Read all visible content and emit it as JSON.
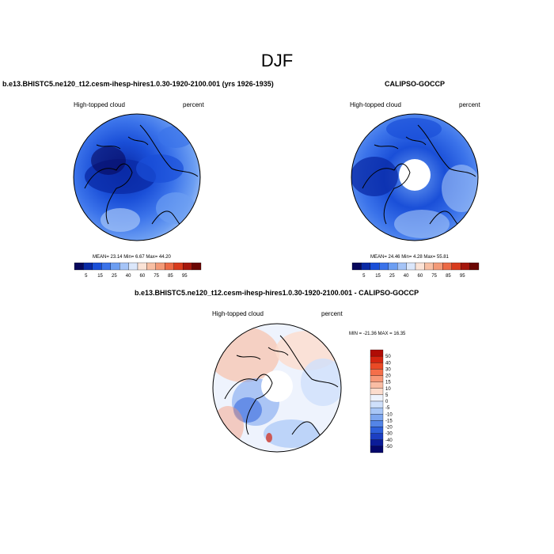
{
  "page_title": "DJF",
  "panels": [
    {
      "title": "b.e13.BHISTC5.ne120_t12.cesm-ihesp-hires1.0.30-1920-2100.001 (yrs 1926-1935)",
      "left_label": "High-topped cloud",
      "right_label": "percent",
      "stats": "MEAN=  23.14  Min=   6.67  Max=  44.20"
    },
    {
      "title": "CALIPSO-GOCCP",
      "left_label": "High-topped cloud",
      "right_label": "percent",
      "stats": "MEAN=  24.46  Min=   4.28  Max=  55.81"
    },
    {
      "title": "b.e13.BHISTC5.ne120_t12.cesm-ihesp-hires1.0.30-1920-2100.001 - CALIPSO-GOCCP",
      "left_label": "High-topped cloud",
      "right_label": "percent",
      "stats": "MIN = -21.36 MAX =  16.35"
    }
  ],
  "colorbar_main": {
    "colors": [
      "#08085c",
      "#0a2aa6",
      "#1a4fd8",
      "#3b73ea",
      "#6c9ef2",
      "#a5c4f7",
      "#dbe7fb",
      "#fbe3d6",
      "#f8bfa3",
      "#f39a77",
      "#ec6a45",
      "#d83b1d",
      "#a5170d",
      "#6b0603"
    ],
    "labels": [
      "5",
      "15",
      "25",
      "40",
      "60",
      "75",
      "85",
      "95"
    ]
  },
  "colorbar_diff": {
    "colors": [
      "#b00c05",
      "#d42510",
      "#ea4a26",
      "#f46f4a",
      "#f79878",
      "#f9bda4",
      "#fcdccd",
      "#eef3fd",
      "#cfe0fb",
      "#a8c6f6",
      "#7ea7f0",
      "#5485e7",
      "#2e60db",
      "#1c3fc2",
      "#0b1c98",
      "#04076b"
    ],
    "labels": [
      "50",
      "40",
      "30",
      "20",
      "15",
      "10",
      "5",
      "0",
      "-5",
      "-10",
      "-15",
      "-20",
      "-30",
      "-40",
      "-50"
    ]
  }
}
